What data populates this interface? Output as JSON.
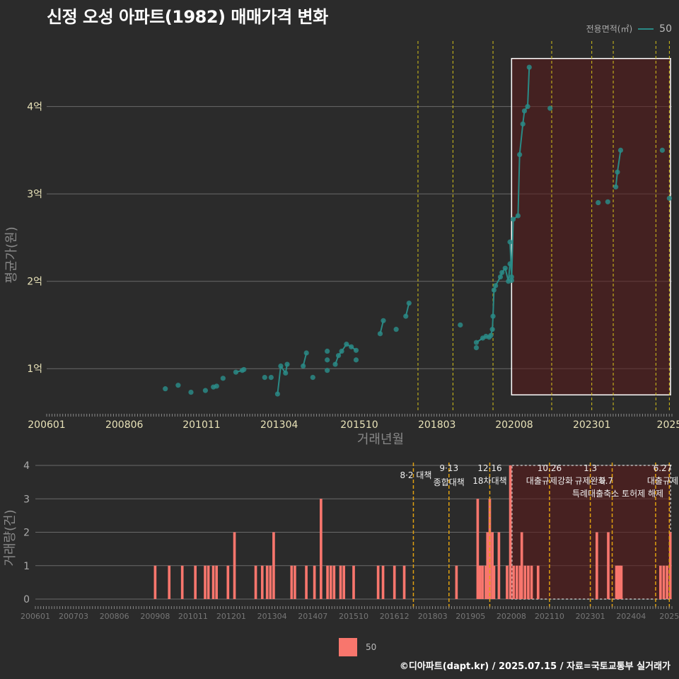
{
  "title": "신정 오성 아파트(1982) 매매가격 변화",
  "legend": {
    "title": "전용면적(㎡)",
    "series": "50"
  },
  "footer": "©디아파트(dapt.kr) / 2025.07.15 / 자료=국토교통부 실거래가",
  "colors": {
    "price": "#2a8a86",
    "volume": "#f8766d",
    "policy_line": "#d4c21a",
    "policy_line_bottom": "#e0a010",
    "highlight": "#5a1a1a"
  },
  "chart_data": [
    {
      "type": "scatter",
      "title": "신정 오성 아파트(1982) 매매가격 변화",
      "xlabel": "거래년월",
      "ylabel": "평균가(원)",
      "xlim": [
        2006.0,
        2025.5
      ],
      "ylim": [
        0.5,
        4.75
      ],
      "x_ticks": [
        2006.0,
        2008.42,
        2010.83,
        2013.25,
        2015.75,
        2018.17,
        2020.58,
        2023.0,
        2025.42
      ],
      "x_tick_labels": [
        "200601",
        "200806",
        "201011",
        "201304",
        "201510",
        "201803",
        "202008",
        "202301",
        "2025"
      ],
      "y_ticks": [
        1,
        2,
        3,
        4
      ],
      "y_tick_labels": [
        "1억",
        "2억",
        "3억",
        "4억"
      ],
      "policy_lines": [
        2017.58,
        2018.67,
        2019.92,
        2021.75,
        2023.0,
        2023.67,
        2025.0,
        2025.42
      ],
      "highlight": {
        "x_start": 2020.5,
        "x_end": 2025.5,
        "y_start": 0.7,
        "y_end": 4.55
      },
      "series": [
        {
          "name": "50",
          "points": [
            [
              2009.7,
              0.77
            ],
            [
              2010.1,
              0.81
            ],
            [
              2010.5,
              0.73
            ],
            [
              2010.95,
              0.75
            ],
            [
              2011.2,
              0.79
            ],
            [
              2011.3,
              0.8
            ],
            [
              2011.5,
              0.89
            ],
            [
              2011.9,
              0.96
            ],
            [
              2012.1,
              0.98
            ],
            [
              2012.15,
              0.99
            ],
            [
              2012.8,
              0.9
            ],
            [
              2013.0,
              0.9
            ],
            [
              2013.2,
              0.71
            ],
            [
              2013.3,
              1.03
            ],
            [
              2013.45,
              0.95
            ],
            [
              2013.5,
              1.05
            ],
            [
              2014.0,
              1.03
            ],
            [
              2014.1,
              1.18
            ],
            [
              2014.3,
              0.9
            ],
            [
              2014.75,
              0.98
            ],
            [
              2014.75,
              1.1
            ],
            [
              2014.75,
              1.2
            ],
            [
              2015.0,
              1.05
            ],
            [
              2015.1,
              1.15
            ],
            [
              2015.2,
              1.2
            ],
            [
              2015.35,
              1.28
            ],
            [
              2015.5,
              1.25
            ],
            [
              2015.65,
              1.21
            ],
            [
              2015.65,
              1.1
            ],
            [
              2016.4,
              1.4
            ],
            [
              2016.5,
              1.55
            ],
            [
              2016.9,
              1.45
            ],
            [
              2017.2,
              1.6
            ],
            [
              2017.3,
              1.75
            ],
            [
              2018.9,
              1.5
            ],
            [
              2019.4,
              1.24
            ],
            [
              2019.4,
              1.3
            ],
            [
              2019.6,
              1.35
            ],
            [
              2019.7,
              1.37
            ],
            [
              2019.8,
              1.36
            ],
            [
              2019.85,
              1.38
            ],
            [
              2019.9,
              1.45
            ],
            [
              2019.92,
              1.6
            ],
            [
              2019.95,
              1.9
            ],
            [
              2020.0,
              1.95
            ],
            [
              2020.15,
              2.05
            ],
            [
              2020.2,
              2.1
            ],
            [
              2020.3,
              2.15
            ],
            [
              2020.4,
              2.0
            ],
            [
              2020.45,
              2.2
            ],
            [
              2020.45,
              2.45
            ],
            [
              2020.5,
              2.05
            ],
            [
              2020.5,
              2.01
            ],
            [
              2020.55,
              2.71
            ],
            [
              2020.7,
              2.75
            ],
            [
              2020.75,
              3.45
            ],
            [
              2020.85,
              3.8
            ],
            [
              2020.9,
              3.95
            ],
            [
              2021.0,
              4.0
            ],
            [
              2021.05,
              4.45
            ],
            [
              2021.7,
              3.98
            ],
            [
              2023.2,
              2.9
            ],
            [
              2023.5,
              2.91
            ],
            [
              2023.75,
              3.08
            ],
            [
              2023.8,
              3.25
            ],
            [
              2023.9,
              3.5
            ],
            [
              2025.2,
              3.5
            ],
            [
              2025.42,
              2.95
            ]
          ]
        }
      ]
    },
    {
      "type": "bar",
      "xlabel": "",
      "ylabel": "거래량(건)",
      "xlim": [
        2006.0,
        2025.5
      ],
      "ylim": [
        0,
        4
      ],
      "x_ticks": [
        2006.0,
        2007.17,
        2008.42,
        2009.67,
        2010.83,
        2012.0,
        2013.25,
        2014.5,
        2015.75,
        2017.0,
        2018.17,
        2019.33,
        2020.58,
        2021.75,
        2023.0,
        2024.25,
        2025.42
      ],
      "x_tick_labels": [
        "200601",
        "200703",
        "200806",
        "200908",
        "201011",
        "201201",
        "201304",
        "201407",
        "201510",
        "201612",
        "201803",
        "201905",
        "202008",
        "202110",
        "202301",
        "202404",
        "2025"
      ],
      "y_ticks": [
        0,
        1,
        2,
        3,
        4
      ],
      "y_tick_labels": [
        "0",
        "1",
        "2",
        "3",
        "4"
      ],
      "highlight": {
        "x_start": 2020.6,
        "x_end": 2025.5
      },
      "policies": [
        {
          "x": 2017.58,
          "date": "8·2 대책",
          "name": ""
        },
        {
          "x": 2018.67,
          "date": "9·13",
          "name": "종합대책"
        },
        {
          "x": 2019.92,
          "date": "12·16",
          "name": "18차대책"
        },
        {
          "x": 2021.75,
          "date": "10.26",
          "name": "대출규제강화"
        },
        {
          "x": 2023.0,
          "date": "1.3",
          "name": "규제완화"
        },
        {
          "x": 2023.67,
          "date": "9.7",
          "name": "특례대출축소 토허제 해제"
        },
        {
          "x": 2025.0,
          "date": "6.27",
          "name": "대출규제"
        },
        {
          "x": 2025.42,
          "date": "",
          "name": ""
        }
      ],
      "series": [
        {
          "name": "50",
          "bars": [
            [
              2009.67,
              1
            ],
            [
              2010.1,
              1
            ],
            [
              2010.5,
              1
            ],
            [
              2010.9,
              1
            ],
            [
              2011.2,
              1
            ],
            [
              2011.3,
              1
            ],
            [
              2011.45,
              1
            ],
            [
              2011.55,
              1
            ],
            [
              2011.9,
              1
            ],
            [
              2012.1,
              2
            ],
            [
              2012.75,
              1
            ],
            [
              2012.95,
              1
            ],
            [
              2013.1,
              1
            ],
            [
              2013.2,
              1
            ],
            [
              2013.3,
              2
            ],
            [
              2013.85,
              1
            ],
            [
              2013.95,
              1
            ],
            [
              2014.3,
              1
            ],
            [
              2014.55,
              1
            ],
            [
              2014.75,
              3
            ],
            [
              2014.95,
              1
            ],
            [
              2015.05,
              1
            ],
            [
              2015.15,
              1
            ],
            [
              2015.35,
              1
            ],
            [
              2015.45,
              1
            ],
            [
              2015.75,
              1
            ],
            [
              2016.5,
              1
            ],
            [
              2016.65,
              1
            ],
            [
              2017.0,
              1
            ],
            [
              2017.3,
              1
            ],
            [
              2018.9,
              1
            ],
            [
              2019.55,
              3
            ],
            [
              2019.62,
              1
            ],
            [
              2019.7,
              1
            ],
            [
              2019.8,
              1
            ],
            [
              2019.85,
              2
            ],
            [
              2019.92,
              3
            ],
            [
              2020.0,
              2
            ],
            [
              2020.05,
              1
            ],
            [
              2020.2,
              2
            ],
            [
              2020.45,
              1
            ],
            [
              2020.55,
              4
            ],
            [
              2020.65,
              1
            ],
            [
              2020.75,
              1
            ],
            [
              2020.85,
              1
            ],
            [
              2020.9,
              2
            ],
            [
              2021.0,
              1
            ],
            [
              2021.1,
              1
            ],
            [
              2021.2,
              1
            ],
            [
              2021.4,
              1
            ],
            [
              2023.2,
              2
            ],
            [
              2023.55,
              2
            ],
            [
              2023.8,
              1
            ],
            [
              2023.85,
              1
            ],
            [
              2023.9,
              1
            ],
            [
              2023.95,
              1
            ],
            [
              2025.15,
              1
            ],
            [
              2025.25,
              1
            ],
            [
              2025.35,
              1
            ],
            [
              2025.45,
              2
            ]
          ]
        }
      ]
    }
  ]
}
